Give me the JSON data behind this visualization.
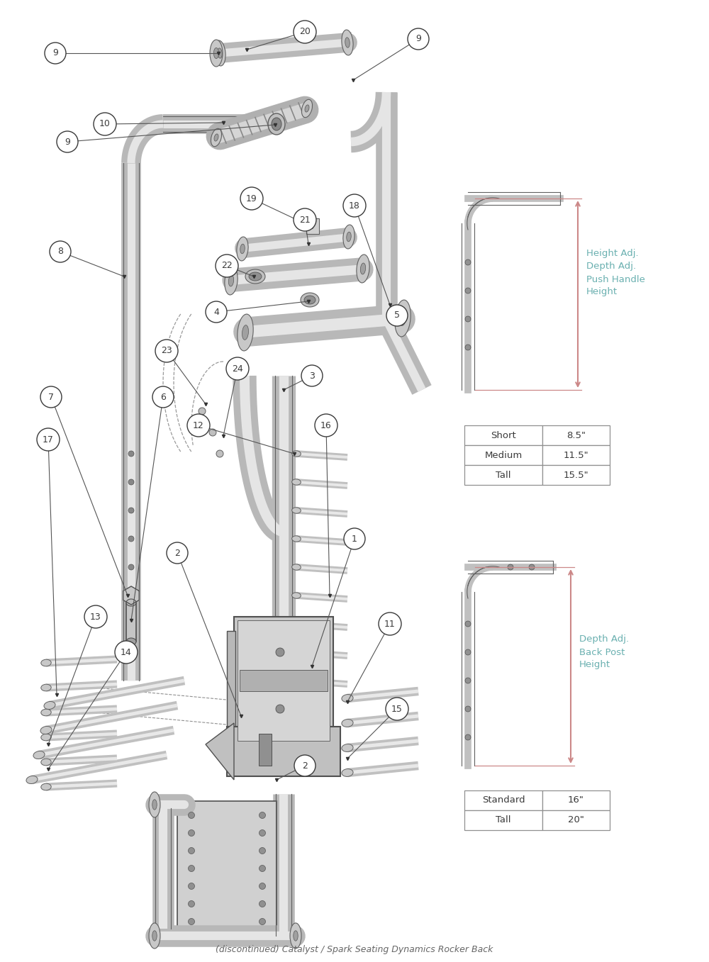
{
  "title": "(discontinued) Catalyst / Spark Seating Dynamics Rocker Back",
  "background_color": "#ffffff",
  "line_color": "#3a3a3a",
  "dim_color": "#cc8888",
  "dim_text_color": "#6ab0b0",
  "table1_rows": [
    [
      "Short",
      "8.5\""
    ],
    [
      "Medium",
      "11.5\""
    ],
    [
      "Tall",
      "15.5\""
    ]
  ],
  "table2_rows": [
    [
      "Standard",
      "16\""
    ],
    [
      "Tall",
      "20\""
    ]
  ],
  "tube_outer": "#aaaaaa",
  "tube_inner": "#e8e8e8",
  "tube_edge": "#606060"
}
